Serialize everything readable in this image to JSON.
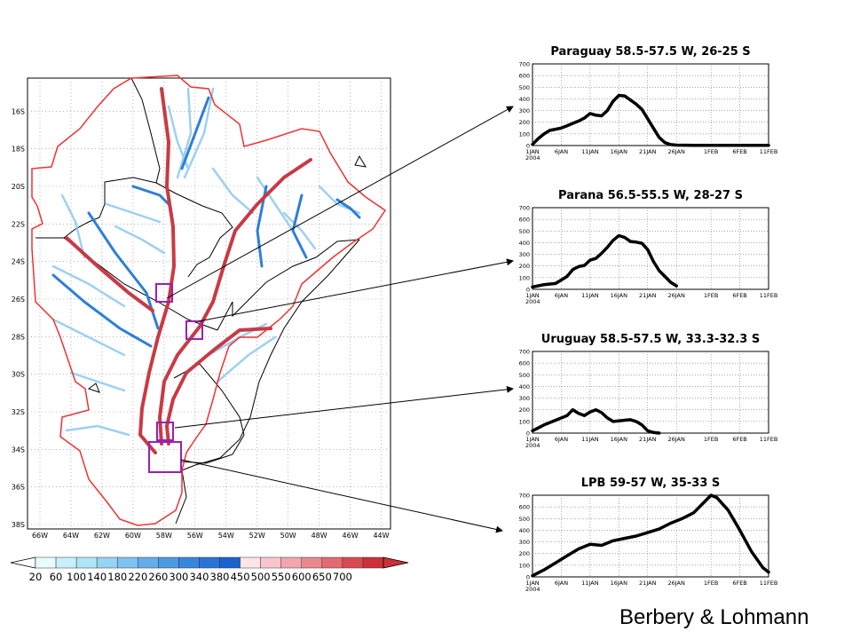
{
  "credit": "Berbery & Lohmann",
  "map": {
    "lat_labels": [
      "16S",
      "18S",
      "20S",
      "22S",
      "24S",
      "26S",
      "28S",
      "30S",
      "32S",
      "34S",
      "36S",
      "38S"
    ],
    "lon_labels": [
      "66W",
      "64W",
      "62W",
      "60W",
      "58W",
      "56W",
      "54W",
      "52W",
      "50W",
      "48W",
      "46W",
      "44W"
    ]
  },
  "colorbar": {
    "labels": [
      "20",
      "60",
      "100",
      "140",
      "180",
      "220",
      "260",
      "300",
      "340",
      "380",
      "450",
      "500",
      "550",
      "600",
      "650",
      "700"
    ],
    "colors": [
      "#e8fbff",
      "#c8f0ff",
      "#aee6f8",
      "#96d4f4",
      "#7ec2f0",
      "#64aee8",
      "#4c9ae2",
      "#3886dc",
      "#2874d6",
      "#1a62cc",
      "#fde4e8",
      "#f8c6cc",
      "#f2a6ae",
      "#ea8890",
      "#e26a72",
      "#d84a52",
      "#cc3038"
    ]
  },
  "colors": {
    "basin_outline": "#ee3333",
    "box": "#9b1fb0",
    "series_line": "#000000"
  },
  "chart_data": [
    {
      "type": "line",
      "title": "Paraguay 58.5-57.5 W, 26-25 S",
      "x_tick_labels": [
        "1JAN\n2004",
        "6JAN",
        "11JAN",
        "16JAN",
        "21JAN",
        "26JAN",
        "1FEB",
        "6FEB",
        "11FEB"
      ],
      "x_days": [
        0,
        5,
        10,
        15,
        20,
        25,
        31,
        36,
        41
      ],
      "ylim": [
        0,
        700
      ],
      "y_ticks": [
        0,
        100,
        200,
        300,
        400,
        500,
        600,
        700
      ],
      "series": [
        {
          "name": "flow",
          "days": [
            0,
            1,
            2,
            3,
            4,
            5,
            6,
            7,
            8,
            9,
            10,
            11,
            12,
            13,
            14,
            15,
            16,
            17,
            18,
            19,
            20,
            21,
            22,
            23,
            24,
            25,
            28,
            32,
            36,
            41
          ],
          "values": [
            10,
            60,
            100,
            130,
            140,
            150,
            170,
            190,
            210,
            235,
            275,
            260,
            255,
            300,
            380,
            430,
            425,
            390,
            355,
            310,
            230,
            150,
            70,
            25,
            8,
            4,
            2,
            2,
            2,
            2
          ]
        }
      ]
    },
    {
      "type": "line",
      "title": "Parana 56.5-55.5 W, 28-27 S",
      "x_tick_labels": [
        "1JAN\n2004",
        "6JAN",
        "11JAN",
        "16JAN",
        "21JAN",
        "26JAN",
        "1FEB",
        "6FEB",
        "11FEB"
      ],
      "x_days": [
        0,
        5,
        10,
        15,
        20,
        25,
        31,
        36,
        41
      ],
      "ylim": [
        0,
        700
      ],
      "y_ticks": [
        0,
        100,
        200,
        300,
        400,
        500,
        600,
        700
      ],
      "series": [
        {
          "name": "flow",
          "days": [
            0,
            2,
            4,
            6,
            7,
            8,
            9,
            10,
            11,
            12,
            13,
            14,
            15,
            16,
            17,
            18,
            19,
            20,
            21,
            22,
            23,
            24,
            25
          ],
          "values": [
            20,
            40,
            50,
            110,
            170,
            195,
            205,
            250,
            265,
            310,
            360,
            420,
            460,
            445,
            410,
            405,
            395,
            340,
            240,
            160,
            110,
            60,
            30
          ]
        }
      ]
    },
    {
      "type": "line",
      "title": "Uruguay 58.5-57.5 W, 33.3-32.3 S",
      "x_tick_labels": [
        "1JAN\n2004",
        "6JAN",
        "11JAN",
        "16JAN",
        "21JAN",
        "26JAN",
        "1FEB",
        "6FEB",
        "11FEB"
      ],
      "x_days": [
        0,
        5,
        10,
        15,
        20,
        25,
        31,
        36,
        41
      ],
      "ylim": [
        0,
        700
      ],
      "y_ticks": [
        0,
        100,
        200,
        300,
        400,
        500,
        600,
        700
      ],
      "series": [
        {
          "name": "flow",
          "days": [
            0,
            2,
            4,
            6,
            7,
            8,
            9,
            10,
            11,
            12,
            13,
            14,
            15,
            16,
            17,
            18,
            19,
            20,
            21,
            22
          ],
          "values": [
            20,
            70,
            110,
            150,
            200,
            170,
            150,
            180,
            200,
            175,
            130,
            100,
            105,
            110,
            115,
            100,
            70,
            20,
            5,
            0
          ]
        }
      ]
    },
    {
      "type": "line",
      "title": "LPB 59-57 W, 35-33 S",
      "x_tick_labels": [
        "1JAN\n2004",
        "6JAN",
        "11JAN",
        "16JAN",
        "21JAN",
        "26JAN",
        "1FEB",
        "6FEB",
        "11FEB"
      ],
      "x_days": [
        0,
        5,
        10,
        15,
        20,
        25,
        31,
        36,
        41
      ],
      "ylim": [
        0,
        700
      ],
      "y_ticks": [
        0,
        100,
        200,
        300,
        400,
        500,
        600,
        700
      ],
      "series": [
        {
          "name": "flow",
          "days": [
            0,
            2,
            4,
            6,
            8,
            10,
            12,
            14,
            16,
            18,
            20,
            22,
            24,
            26,
            28,
            30,
            31,
            32,
            34,
            36,
            38,
            40,
            41
          ],
          "values": [
            10,
            60,
            120,
            180,
            240,
            280,
            270,
            310,
            330,
            350,
            380,
            410,
            460,
            500,
            550,
            650,
            700,
            680,
            570,
            400,
            220,
            80,
            40
          ]
        }
      ]
    }
  ]
}
